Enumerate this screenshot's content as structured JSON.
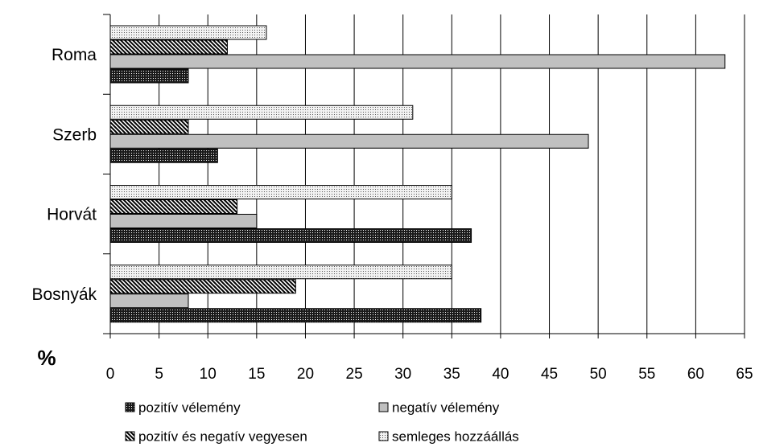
{
  "chart_data": {
    "type": "hbar",
    "xlabel": "%",
    "categories": [
      "Roma",
      "Szerb",
      "Horvát",
      "Bosnyák"
    ],
    "series": [
      {
        "name": "pozitív vélemény",
        "color": "#1a1a1a",
        "pattern": "dense-dots",
        "values": [
          8,
          11,
          37,
          38
        ]
      },
      {
        "name": "negatív vélemény",
        "color": "#c0c0c0",
        "pattern": "solid",
        "values": [
          63,
          49,
          15,
          8
        ]
      },
      {
        "name": "pozitív és negatív vegyesen",
        "color": "#000000",
        "pattern": "diagonal",
        "values": [
          12,
          8,
          13,
          19
        ]
      },
      {
        "name": "semleges hozzáállás",
        "color": "#d8d8d8",
        "pattern": "sparse-dots",
        "values": [
          16,
          31,
          35,
          35
        ]
      }
    ],
    "xlim": [
      0,
      65
    ],
    "xticks": [
      0,
      5,
      10,
      15,
      20,
      25,
      30,
      35,
      40,
      45,
      50,
      55,
      60,
      65
    ],
    "grid": true
  }
}
